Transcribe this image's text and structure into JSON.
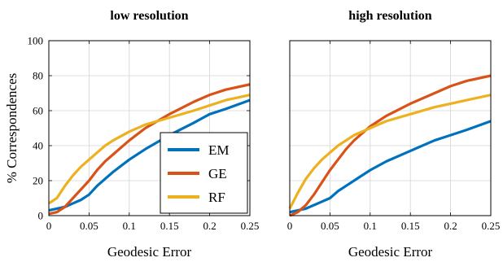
{
  "chart_data": [
    {
      "type": "line",
      "title": "low resolution",
      "xlabel": "Geodesic Error",
      "ylabel": "% Correspondences",
      "xlim": [
        0,
        0.25
      ],
      "ylim": [
        0,
        100
      ],
      "x_ticks": [
        "0",
        "0.05",
        "0.1",
        "0.15",
        "0.2",
        "0.25"
      ],
      "y_ticks": [
        "0",
        "20",
        "40",
        "60",
        "80",
        "100"
      ],
      "grid": true,
      "legend": {
        "placement": "center-right",
        "entries": [
          "EM",
          "GE",
          "RF"
        ]
      },
      "series": [
        {
          "name": "EM",
          "color": "#0072BD",
          "x": [
            0,
            0.01,
            0.02,
            0.03,
            0.04,
            0.05,
            0.06,
            0.07,
            0.08,
            0.1,
            0.12,
            0.15,
            0.18,
            0.2,
            0.22,
            0.25
          ],
          "y": [
            3,
            4,
            5,
            7,
            9,
            12,
            17,
            21,
            25,
            32,
            38,
            46,
            53,
            58,
            61,
            66
          ]
        },
        {
          "name": "GE",
          "color": "#D95319",
          "x": [
            0,
            0.01,
            0.02,
            0.03,
            0.04,
            0.05,
            0.06,
            0.07,
            0.08,
            0.1,
            0.12,
            0.15,
            0.18,
            0.2,
            0.22,
            0.25
          ],
          "y": [
            1,
            2,
            5,
            10,
            15,
            20,
            26,
            31,
            35,
            43,
            50,
            58,
            65,
            69,
            72,
            75
          ]
        },
        {
          "name": "RF",
          "color": "#EDB120",
          "x": [
            0,
            0.01,
            0.02,
            0.03,
            0.04,
            0.05,
            0.06,
            0.07,
            0.08,
            0.1,
            0.12,
            0.15,
            0.18,
            0.2,
            0.22,
            0.25
          ],
          "y": [
            7,
            10,
            17,
            23,
            28,
            32,
            36,
            40,
            43,
            48,
            52,
            56,
            60,
            63,
            66,
            69
          ]
        }
      ]
    },
    {
      "type": "line",
      "title": "high resolution",
      "xlabel": "Geodesic Error",
      "ylabel": "",
      "xlim": [
        0,
        0.25
      ],
      "ylim": [
        0,
        100
      ],
      "x_ticks": [
        "0",
        "0.05",
        "0.1",
        "0.15",
        "0.2",
        "0.25"
      ],
      "y_ticks": [],
      "grid": true,
      "series": [
        {
          "name": "EM",
          "color": "#0072BD",
          "x": [
            0,
            0.01,
            0.02,
            0.03,
            0.04,
            0.05,
            0.06,
            0.07,
            0.08,
            0.1,
            0.12,
            0.15,
            0.18,
            0.2,
            0.22,
            0.25
          ],
          "y": [
            2,
            3,
            4,
            6,
            8,
            10,
            14,
            17,
            20,
            26,
            31,
            37,
            43,
            46,
            49,
            54
          ]
        },
        {
          "name": "GE",
          "color": "#D95319",
          "x": [
            0,
            0.01,
            0.02,
            0.03,
            0.04,
            0.05,
            0.06,
            0.07,
            0.08,
            0.1,
            0.12,
            0.15,
            0.18,
            0.2,
            0.22,
            0.25
          ],
          "y": [
            0,
            2,
            6,
            12,
            19,
            26,
            32,
            38,
            43,
            51,
            57,
            64,
            70,
            74,
            77,
            80
          ]
        },
        {
          "name": "RF",
          "color": "#EDB120",
          "x": [
            0,
            0.01,
            0.02,
            0.03,
            0.04,
            0.05,
            0.06,
            0.07,
            0.08,
            0.1,
            0.12,
            0.15,
            0.18,
            0.2,
            0.22,
            0.25
          ],
          "y": [
            4,
            13,
            21,
            27,
            32,
            36,
            40,
            43,
            46,
            50,
            54,
            58,
            62,
            64,
            66,
            69
          ]
        }
      ]
    }
  ]
}
